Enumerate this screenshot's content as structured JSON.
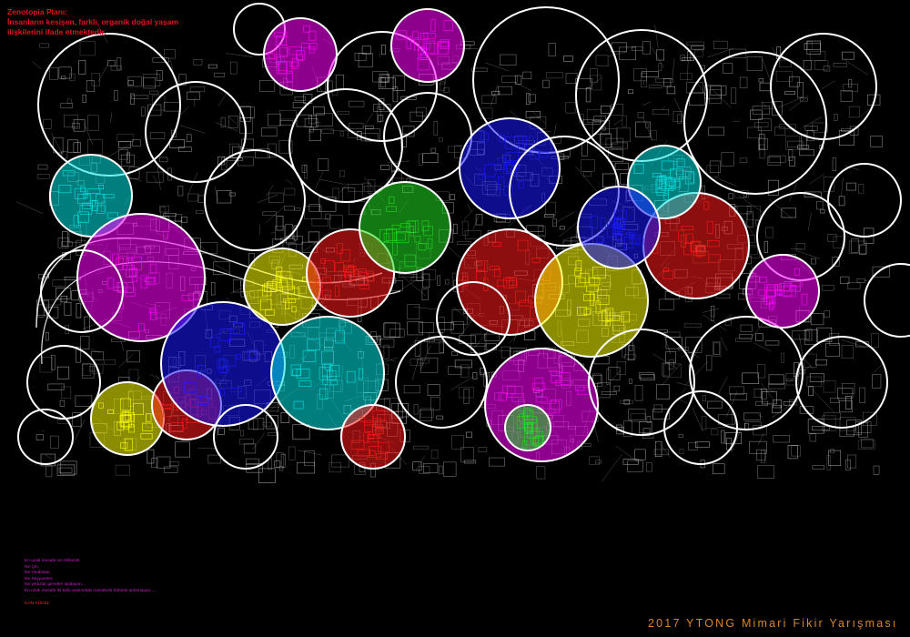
{
  "header": {
    "title_line1": "Zenotopia Planı:",
    "title_line2": "İnsanların kesişen, farklı, organik doğal yaşam",
    "title_line3": "ilişkilerini ifade etmektedir."
  },
  "colors": {
    "background": "#000000",
    "title": "#e0141a",
    "footer": "#d9862a",
    "circle_outline": "#ffffff",
    "zone_fills": [
      "#ff00ff",
      "#00e5e5",
      "#ff1a1a",
      "#ffff00",
      "#1a1aff",
      "#22dd22"
    ]
  },
  "paragraphs": [
    {
      "color": "#e0141a",
      "text": "Yoksulların bir arada yaşadıkları mahalleler, şu kentin çeperine doğru serpilmiştir ya da kent içinde belli koyuklarda yuvalanmıştır. Kent merkezine yakın yerleşmeye yapan alanlar, doğallıkla kentin gelişme alanlarını oluşturduğundan, yoksulların yer seçimleri daha çok yerleşmemiş ve olduğu yerlerde yoğunlaşır. Bu yerlerin ve sorunların tümünü içeren kesimleri de birbirinden ayıran uzaklıklar, en sonunda beraberinde bir \"uzaklık\" tarif ederler."
    },
    {
      "color": "#1e90ff",
      "text": "İnsanların yer bulma ve yerleşme süreçleri sonucunda oluşan mahalle topolojilerini üç tür uzaklıkla tanımlamak mümkündür. Birincisi, kentin yerleşik alanlarının dışında kalarak biçimde uzağa yerleşmektir. Bu yerleşme biçiminde ortaya çıkan uzaklık gerçek anlamda fiziksel bir uzaklıktır; kentle araya sokulan coğrafi mesafedir. Bu fiziksel uzaklık sonucunda, kentle kurulan her tür ilişkide, sosyal ve kültürel ilişkiler de mesafelenmiştir ve bu ilişkiler kurup yaşatmak her hale gelmiştir. Bir anlamda, çeperinde duruları kentle herhangi bir ilişkisi olmadığı bile olduğu söylenebilir. Tüm bunların sonucunda, yoksulluk görünmez bir hâl alır. Üstelik, kentin çeperlerinde kurulan yaşamlar en kadar görülebiliyorsa o kadar görülebilen, çoğunlukla köy sermedilim bir mekânsallık görüldür."
    },
    {
      "color": "#e6d21e",
      "text": "İkinci uzaklık, zamanla kentin gelişme alanı içerisinde kalan, çevresinden dolaylan veya üstünden atlanarak geçilen yoksul mahallelerin kurduğu uzaklıktır. Bu mahalleler, eğer yerleşime açılmak anlamında topoğrafik, yasal ya da başka türden zorluklar taşıyorlarsa, bir süre için oldukları gibi kalırlar. Kentin içinde apartmanlarla kuşatılmış sert yamaçlardaki ya da vadi tabanlarındaki gecekondu alanları böyle yerlerdir. Zamanla kentin gelişim alanı içinde kalan ve gelişmeye müsait gecekondu mahallelerine gerekli planlama süreçleri sonrasında toplantılarla inşaat şantiyesine dönüşür, kazanarak ortadan kalkmıştır. Bu uzaklık, kentle aynı şehrin dokusu içinde bir arada olsa da sosyal ve kültürel bakımdan tutarlı birbirlerinin görmediği, bu tespit yoksul mahallesinde de bulmaları gerekir."
    },
    {
      "color": "#e0141a",
      "text": "Üçüncü uzaklık ise, aslında fiziksel olarak kuruluş, ekonomik sistemin dışında sosyal ve kültürel bir uzaklık. Kentin, içerisinde yer aldığı bu mahalleleri uzaktan bakarak fiziksel alanlarını, zaman içerisinde, \"çöküntü alanları\" haline gelmektedir. Kentin merkezinde bulunan bu alanlar kentsel dönüşümün uyguladığı yaşam biçimleri, zaman içerisinde yoksul göçlerle, kendileri kültürlerini ve yaşamlarını taşırlar. Bu mahalleler kent merkezinin yanı başında durduklarından, yoksulların bu mesafesi ve bu kentin kendinin bir parçası olarak hayali imgelerin tasarlandığı uzak yerlere dönüşmüştür. Bu bağlamda, farklılığın \"çöküntü alanı\" olarak yerleşmesi ve dışlanması gerekli görülür."
    },
    {
      "color": "#e6d21e",
      "text": "Bu son tür uzaklıkta, aslında yoksulla durumu daha iyi olan alanlarda herhangi bir fiziksel uzaklık kalmamıştır. Yoksul ile durumu iyi olan aynı mahallede, hattâ aynı apartmanda yaşarlar. Ama fiziksel olarak birbirine çok yakın yaşamalarına rağmen aralarında herhangi bir sosyal ve kültürel ilişki oluşmaz. Hattâ aralarındaki görme duyma ilişkisi bile kopartılmaya çalışılır. Bir anlamda, fiziksel olarak var olmayan ama sosyal ve kültürel olarak var olan bir uzaklıktan söz etmek mümkündür. Bu durumun en yaygın iki biçimi ise; hemen hemen tümüyle apartmanlaşmış kent alanlarında kalmış ve eskiden kalma az sayıdaki gecekondu ile ya da gecekondularla yan yana bulunan yeni apartmanlardaki yoksulların yaşadıkları ilişkidir. Zamanla, fiziksel mesafe yoksullukla ilgili her türlü konuşmayı daha da zorlaştırır. Bu alanlarda, insan yaşamının herhangi bir fiziksel mesafe kalmamışken, birbirine komşu olan insanlar arasında sosyal ve kültürel ilişkiler de yoktur.\n\nİkinci bir tip ise, daha çok orta sınıf apartmanlarının arka bahçelerinde tek tük müştemilatlar ve bodrum katlarındaki kapıcı daireleri ile aynı apartmanın ayrı katlarında oturanlar arasındaki ilişkidir. Bunlar çoğunlukla apartman adına kiraya verilir. Orta yükte olanlar apartmanın bakımını üstlenirler. Sonuçta, yoksullar bu apartmanın ara katında yaşarlar, bu durum da insanlar arasında ilişki kurulmasına olanak vermez; birbirlerini yok sayarlar. Ortaya fiziksel olmasa da, kültürel ve sosyal bir uzaklık çıkar."
    }
  ],
  "poem": {
    "lines": [
      "En uzak mesafe ne Afrika'dır",
      "Ne Çin,",
      "Ne Hindistan,",
      "Ne Seyyareler,",
      "Ne yıldızlar geceleri ışıldayan...",
      "En uzak mesafe iki kafa arasındaki mesafedir birbirini anlamayan......"
    ],
    "author": "CAN YÜCEL"
  },
  "footer": {
    "competition": "2017 YTONG Mimari Fikir Yarışması"
  }
}
